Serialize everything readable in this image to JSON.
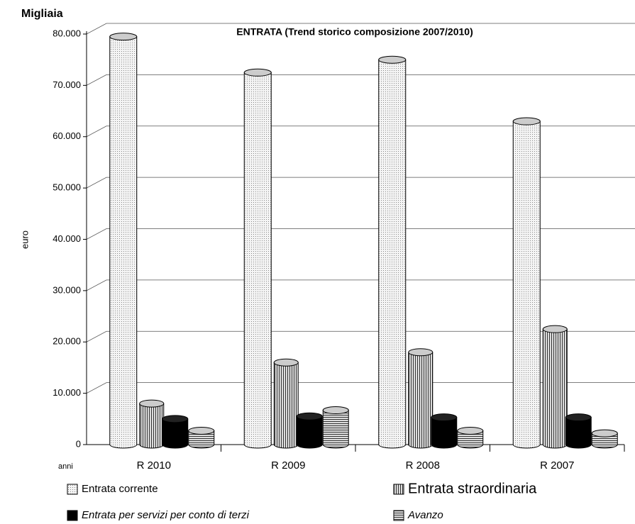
{
  "chart_data": {
    "type": "cylinder-bar",
    "unit_label": "Migliaia",
    "title": "ENTRATA (Trend storico composizione 2007/2010)",
    "y_label": "euro",
    "x_label": "anni",
    "categories": [
      "R 2010",
      "R 2009",
      "R 2008",
      "R 2007"
    ],
    "series": [
      {
        "name": "Entrata corrente",
        "color": "#ffffff",
        "pattern": "dots",
        "values": [
          79500,
          72500,
          75000,
          63000
        ]
      },
      {
        "name": "Entrata straordinaria",
        "color": "#888888",
        "pattern": "vertical",
        "values": [
          8000,
          16000,
          18000,
          22500
        ]
      },
      {
        "name": "Entrata per servizi per conto di terzi",
        "color": "#000000",
        "pattern": "solid",
        "values": [
          5000,
          5500,
          5300,
          5300
        ]
      },
      {
        "name": "Avanzo",
        "color": "#aaaaaa",
        "pattern": "horizontal",
        "values": [
          2700,
          6700,
          2700,
          2200
        ]
      }
    ],
    "ylim": [
      0,
      80000
    ],
    "yticks": [
      0,
      {
        "value": 10000,
        "label": "10.000"
      },
      {
        "value": 20000,
        "label": "20.000"
      },
      {
        "value": 30000,
        "label": "30.000"
      },
      {
        "value": 40000,
        "label": "40.000"
      },
      {
        "value": 50000,
        "label": "50.000"
      },
      {
        "value": 60000,
        "label": "60.000"
      },
      {
        "value": 70000,
        "label": "70.000"
      },
      {
        "value": 80000,
        "label": "80.000"
      }
    ],
    "grid": true
  }
}
